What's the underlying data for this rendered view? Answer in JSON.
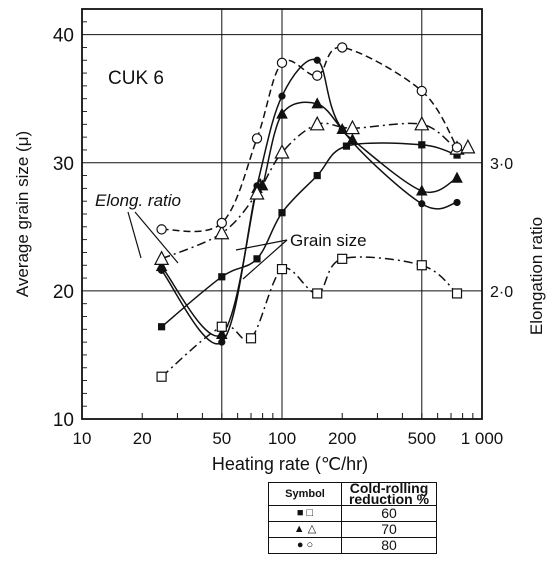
{
  "chart_data": {
    "type": "line",
    "annotation_title": "CUK 6",
    "xlabel": "Heating rate (℃/hr)",
    "ylabel_left": "Average grain size (μ)",
    "ylabel_right": "Elongation ratio",
    "x_scale": "log",
    "xlim": [
      10,
      1000
    ],
    "ylim_left": [
      10,
      42
    ],
    "ylim_right_equiv": "2.0 at 20 μ, 3.0 at 30 μ",
    "x_ticks": [
      "10",
      "20",
      "50",
      "100",
      "200",
      "500",
      "1 000"
    ],
    "y_ticks_left": [
      "10",
      "20",
      "30",
      "40"
    ],
    "y_ticks_right": [
      "2·0",
      "3·0"
    ],
    "grid": true,
    "annotations": [
      "Elong. ratio",
      "Grain size"
    ],
    "series": [
      {
        "name": "60",
        "quantity": "grain size",
        "marker": "filled-square",
        "style": "solid",
        "x": [
          25,
          50,
          75,
          100,
          150,
          210,
          500,
          750
        ],
        "y": [
          17.2,
          21.1,
          22.5,
          26.1,
          29.0,
          31.3,
          31.4,
          30.6
        ]
      },
      {
        "name": "70",
        "quantity": "grain size",
        "marker": "filled-triangle",
        "style": "solid",
        "x": [
          25,
          50,
          75,
          80,
          100,
          150,
          200,
          225,
          500,
          750
        ],
        "y": [
          21.9,
          16.6,
          28.0,
          28.2,
          33.8,
          34.6,
          32.6,
          31.8,
          27.8,
          28.8
        ]
      },
      {
        "name": "80",
        "quantity": "grain size",
        "marker": "filled-circle",
        "style": "solid",
        "x": [
          25,
          50,
          75,
          100,
          150,
          200,
          500,
          750
        ],
        "y": [
          21.6,
          16.0,
          28.2,
          35.2,
          38.0,
          32.6,
          26.8,
          26.9
        ]
      },
      {
        "name": "60",
        "quantity": "elongation ratio",
        "marker": "open-square",
        "style": "dash-dot",
        "x": [
          25,
          50,
          70,
          100,
          150,
          200,
          500,
          750
        ],
        "y": [
          13.3,
          17.2,
          16.3,
          21.7,
          19.8,
          22.5,
          22.0,
          19.8
        ]
      },
      {
        "name": "70",
        "quantity": "elongation ratio",
        "marker": "open-triangle",
        "style": "dash-dot",
        "x": [
          25,
          50,
          75,
          100,
          150,
          225,
          500,
          750,
          850
        ],
        "y": [
          22.5,
          24.5,
          27.6,
          30.8,
          33.0,
          32.7,
          33.0,
          31.1,
          31.2
        ]
      },
      {
        "name": "80",
        "quantity": "elongation ratio",
        "marker": "open-circle",
        "style": "dashed",
        "x": [
          25,
          50,
          75,
          100,
          150,
          200,
          500,
          750
        ],
        "y": [
          24.8,
          25.3,
          31.9,
          37.8,
          36.8,
          39.0,
          35.6,
          31.2
        ]
      }
    ],
    "legend_table": {
      "col1": "Symbol",
      "col2": "Cold-rolling reduction %",
      "rows": [
        {
          "symbols": "■  □",
          "value": "60"
        },
        {
          "symbols": "▲  △",
          "value": "70"
        },
        {
          "symbols": "●  ○",
          "value": "80"
        }
      ]
    }
  }
}
